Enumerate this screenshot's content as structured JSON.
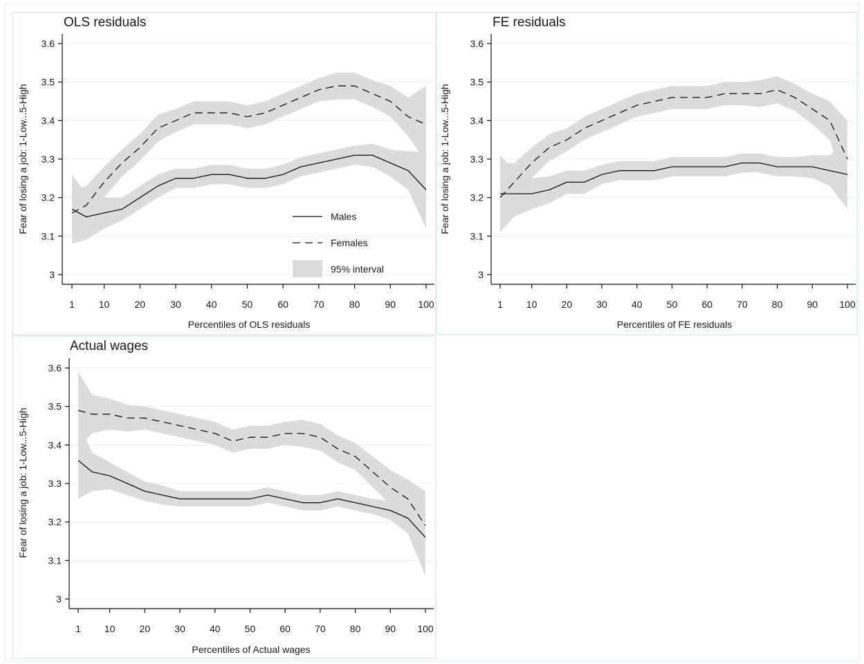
{
  "shared": {
    "legend": {
      "males": "Males",
      "females": "Females",
      "interval": "95% interval"
    },
    "ylabel": "Fear of losing a job: 1-Low...5-High",
    "y_ticks": [
      "3",
      "3.1",
      "3.2",
      "3.3",
      "3.4",
      "3.5",
      "3.6"
    ],
    "x_ticks": [
      "1",
      "10",
      "20",
      "30",
      "40",
      "50",
      "60",
      "70",
      "80",
      "90",
      "100"
    ],
    "colors": {
      "band": "#dcdcdc",
      "line": "#111111",
      "grid": "#eaf0f0",
      "frame": "#eef3f3"
    }
  },
  "chart_data": [
    {
      "type": "line",
      "title": "OLS residuals",
      "xlabel": "Percentiles of OLS residuals",
      "ylabel": "Fear of losing a job: 1-Low...5-High",
      "xlim": [
        1,
        100
      ],
      "ylim": [
        3,
        3.6
      ],
      "legend_position": "inside lower-right",
      "grid": true,
      "x": [
        1,
        5,
        10,
        15,
        20,
        25,
        30,
        35,
        40,
        45,
        50,
        55,
        60,
        65,
        70,
        75,
        80,
        85,
        90,
        95,
        100
      ],
      "series": [
        {
          "name": "Males",
          "style": "solid",
          "values": [
            3.17,
            3.15,
            3.16,
            3.17,
            3.2,
            3.23,
            3.25,
            3.25,
            3.26,
            3.26,
            3.25,
            3.25,
            3.26,
            3.28,
            3.29,
            3.3,
            3.31,
            3.31,
            3.29,
            3.27,
            3.22
          ],
          "ci_half_width": [
            0.09,
            0.06,
            0.04,
            0.03,
            0.03,
            0.03,
            0.025,
            0.025,
            0.025,
            0.025,
            0.025,
            0.025,
            0.025,
            0.025,
            0.025,
            0.025,
            0.025,
            0.03,
            0.035,
            0.05,
            0.1
          ]
        },
        {
          "name": "Females",
          "style": "dashed",
          "values": [
            3.16,
            3.18,
            3.24,
            3.29,
            3.33,
            3.38,
            3.4,
            3.42,
            3.42,
            3.42,
            3.41,
            3.42,
            3.44,
            3.46,
            3.48,
            3.49,
            3.49,
            3.47,
            3.45,
            3.41,
            3.39
          ],
          "ci_half_width": [
            0.06,
            0.05,
            0.04,
            0.035,
            0.035,
            0.035,
            0.03,
            0.03,
            0.03,
            0.03,
            0.03,
            0.03,
            0.03,
            0.03,
            0.03,
            0.035,
            0.035,
            0.035,
            0.04,
            0.05,
            0.1
          ]
        }
      ]
    },
    {
      "type": "line",
      "title": "FE residuals",
      "xlabel": "Percentiles of FE residuals",
      "ylabel": "Fear of losing a job: 1-Low...5-High",
      "xlim": [
        1,
        100
      ],
      "ylim": [
        3,
        3.6
      ],
      "grid": true,
      "x": [
        1,
        5,
        10,
        15,
        20,
        25,
        30,
        35,
        40,
        45,
        50,
        55,
        60,
        65,
        70,
        75,
        80,
        85,
        90,
        95,
        100
      ],
      "series": [
        {
          "name": "Males",
          "style": "solid",
          "values": [
            3.21,
            3.21,
            3.21,
            3.22,
            3.24,
            3.24,
            3.26,
            3.27,
            3.27,
            3.27,
            3.28,
            3.28,
            3.28,
            3.28,
            3.29,
            3.29,
            3.28,
            3.28,
            3.28,
            3.27,
            3.26
          ],
          "ci_half_width": [
            0.1,
            0.06,
            0.04,
            0.035,
            0.03,
            0.03,
            0.025,
            0.025,
            0.025,
            0.025,
            0.025,
            0.025,
            0.025,
            0.025,
            0.025,
            0.025,
            0.025,
            0.025,
            0.03,
            0.04,
            0.09
          ]
        },
        {
          "name": "Females",
          "style": "dashed",
          "values": [
            3.2,
            3.24,
            3.29,
            3.33,
            3.35,
            3.38,
            3.4,
            3.42,
            3.44,
            3.45,
            3.46,
            3.46,
            3.46,
            3.47,
            3.47,
            3.47,
            3.48,
            3.46,
            3.43,
            3.4,
            3.3
          ],
          "ci_half_width": [
            0.09,
            0.05,
            0.04,
            0.035,
            0.03,
            0.03,
            0.03,
            0.03,
            0.03,
            0.03,
            0.03,
            0.03,
            0.03,
            0.03,
            0.03,
            0.035,
            0.035,
            0.035,
            0.04,
            0.05,
            0.1
          ]
        }
      ]
    },
    {
      "type": "line",
      "title": "Actual wages",
      "xlabel": "Percentiles of Actual wages",
      "ylabel": "Fear of losing a job: 1-Low...5-High",
      "xlim": [
        1,
        100
      ],
      "ylim": [
        3,
        3.6
      ],
      "grid": true,
      "x": [
        1,
        5,
        10,
        15,
        20,
        25,
        30,
        35,
        40,
        45,
        50,
        55,
        60,
        65,
        70,
        75,
        80,
        85,
        90,
        95,
        100
      ],
      "series": [
        {
          "name": "Males",
          "style": "solid",
          "values": [
            3.36,
            3.33,
            3.32,
            3.3,
            3.28,
            3.27,
            3.26,
            3.26,
            3.26,
            3.26,
            3.26,
            3.27,
            3.26,
            3.25,
            3.25,
            3.26,
            3.25,
            3.24,
            3.23,
            3.21,
            3.16
          ],
          "ci_half_width": [
            0.1,
            0.05,
            0.035,
            0.03,
            0.025,
            0.025,
            0.02,
            0.02,
            0.02,
            0.02,
            0.02,
            0.02,
            0.02,
            0.02,
            0.02,
            0.02,
            0.02,
            0.02,
            0.025,
            0.04,
            0.1
          ]
        },
        {
          "name": "Females",
          "style": "dashed",
          "values": [
            3.49,
            3.48,
            3.48,
            3.47,
            3.47,
            3.46,
            3.45,
            3.44,
            3.43,
            3.41,
            3.42,
            3.42,
            3.43,
            3.43,
            3.42,
            3.39,
            3.37,
            3.33,
            3.29,
            3.26,
            3.19
          ],
          "ci_half_width": [
            0.1,
            0.05,
            0.04,
            0.035,
            0.03,
            0.03,
            0.03,
            0.03,
            0.03,
            0.03,
            0.03,
            0.03,
            0.03,
            0.035,
            0.035,
            0.035,
            0.035,
            0.04,
            0.045,
            0.05,
            0.09
          ]
        }
      ]
    }
  ]
}
